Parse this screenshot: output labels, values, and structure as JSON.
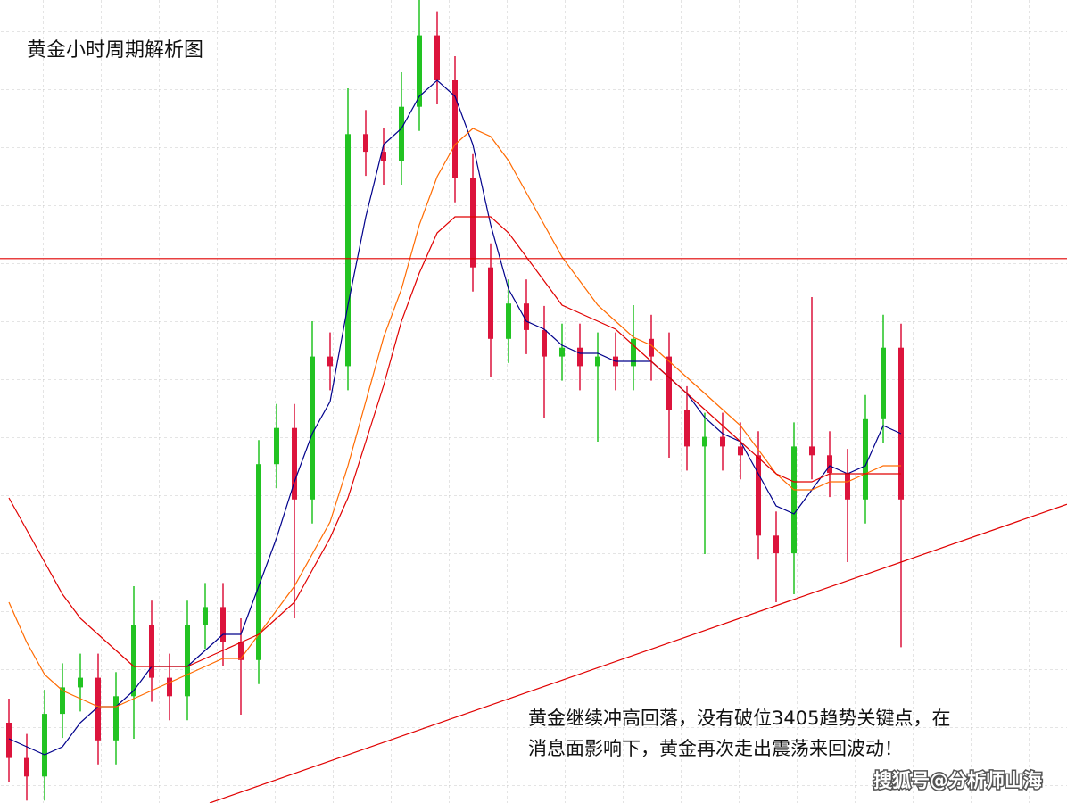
{
  "chart_data": {
    "type": "candlestick",
    "title": "黄金小时周期解析图",
    "annotation": [
      "黄金继续冲高回落，没有破位3405趋势关键点，在",
      "消息面影响下，黄金再次走出震荡来回波动！"
    ],
    "watermark": "搜狐号@分析师山海",
    "ylim": [
      0,
      100
    ],
    "up_color": "#22c322",
    "down_color": "#dc143c",
    "open": [
      10.0,
      5.6,
      3.3,
      11.1,
      14.4,
      15.6,
      7.8,
      13.3,
      22.2,
      15.6,
      13.3,
      22.2,
      24.4,
      20.0,
      17.8,
      42.2,
      46.7,
      37.8,
      55.6,
      54.4,
      83.3,
      81.1,
      80.0,
      86.7,
      95.6,
      90.0,
      77.8,
      66.7,
      57.8,
      62.2,
      58.9,
      55.6,
      56.7,
      54.4,
      55.6,
      54.4,
      57.8,
      55.6,
      48.9,
      44.4,
      45.6,
      44.4,
      43.3,
      33.3,
      31.1,
      44.4,
      43.3,
      41.1,
      37.8,
      47.8,
      56.7
    ],
    "high": [
      13.0,
      8.6,
      14.1,
      17.4,
      18.6,
      18.6,
      16.3,
      27.0,
      25.2,
      18.6,
      25.2,
      27.4,
      27.4,
      23.0,
      45.2,
      49.7,
      49.7,
      60.0,
      58.6,
      89.0,
      86.3,
      84.1,
      91.0,
      100.0,
      98.6,
      93.0,
      80.8,
      69.7,
      65.2,
      65.2,
      61.9,
      59.7,
      59.7,
      58.6,
      58.6,
      62.0,
      60.8,
      58.6,
      51.9,
      48.6,
      48.6,
      47.4,
      46.3,
      36.3,
      47.4,
      63.0,
      46.3,
      44.1,
      50.8,
      60.8,
      59.7
    ],
    "low": [
      2.6,
      0.3,
      0.3,
      8.1,
      11.4,
      4.8,
      4.8,
      8.0,
      12.6,
      10.3,
      10.3,
      19.2,
      17.0,
      11.0,
      14.8,
      39.2,
      23.0,
      34.8,
      51.4,
      51.4,
      78.1,
      77.0,
      77.0,
      83.7,
      87.0,
      74.8,
      63.7,
      53.0,
      54.8,
      55.9,
      48.0,
      52.6,
      51.4,
      45.0,
      51.4,
      51.4,
      52.6,
      43.0,
      41.4,
      31.0,
      41.4,
      40.3,
      30.3,
      25.0,
      26.0,
      40.3,
      38.1,
      30.0,
      34.8,
      44.8,
      19.4
    ],
    "close": [
      5.6,
      3.3,
      11.1,
      14.4,
      15.6,
      7.8,
      13.3,
      22.2,
      15.6,
      13.3,
      22.2,
      24.4,
      20.0,
      17.8,
      42.2,
      46.7,
      37.8,
      55.6,
      54.4,
      83.3,
      81.1,
      80.0,
      86.7,
      95.6,
      90.0,
      77.8,
      66.7,
      57.8,
      62.2,
      58.9,
      55.6,
      56.7,
      54.4,
      55.6,
      54.4,
      57.8,
      55.6,
      48.9,
      44.4,
      45.6,
      44.4,
      43.3,
      33.3,
      31.1,
      44.4,
      43.3,
      41.1,
      37.8,
      47.8,
      56.7,
      37.8
    ],
    "series": [
      {
        "color": "#00008b",
        "values": [
          8,
          7,
          6,
          7,
          10,
          12,
          12,
          14,
          17,
          17,
          17,
          19,
          21,
          21,
          27,
          33,
          40,
          46,
          50,
          62,
          73,
          82,
          84,
          88,
          90,
          88,
          82,
          72,
          64,
          60,
          59,
          57,
          56,
          56,
          55,
          55,
          55,
          53,
          51,
          48,
          46,
          45,
          41,
          37,
          36,
          39,
          42,
          41,
          42,
          47,
          46
        ]
      },
      {
        "color": "#ff6a00",
        "values": [
          25,
          20,
          16,
          14,
          13,
          12,
          12,
          13,
          14,
          15,
          16,
          17,
          18,
          18,
          21,
          24,
          27,
          31,
          35,
          42,
          50,
          58,
          64,
          72,
          78,
          82,
          84,
          83,
          80,
          76,
          72,
          68,
          65,
          62,
          60,
          58,
          57,
          55,
          53,
          51,
          49,
          47,
          44,
          41,
          39,
          39,
          40,
          40,
          41,
          42,
          42
        ]
      },
      {
        "color": "#e00000",
        "values": [
          38,
          34,
          30,
          26,
          23,
          21,
          19,
          17,
          17,
          17,
          17,
          18,
          19,
          20,
          21,
          23,
          25,
          29,
          33,
          38,
          45,
          52,
          60,
          66,
          71,
          73,
          73,
          73,
          71,
          68,
          65,
          62,
          61,
          60,
          59,
          57,
          55,
          53,
          51,
          49,
          47,
          45,
          43,
          41,
          40,
          40,
          41,
          41,
          41,
          41,
          41
        ]
      }
    ],
    "hline": {
      "value": 67.8,
      "color": "#e00000"
    },
    "trendline": {
      "x": [
        11.25,
        59.3
      ],
      "values": [
        0,
        37.2
      ],
      "color": "#e00000"
    }
  }
}
